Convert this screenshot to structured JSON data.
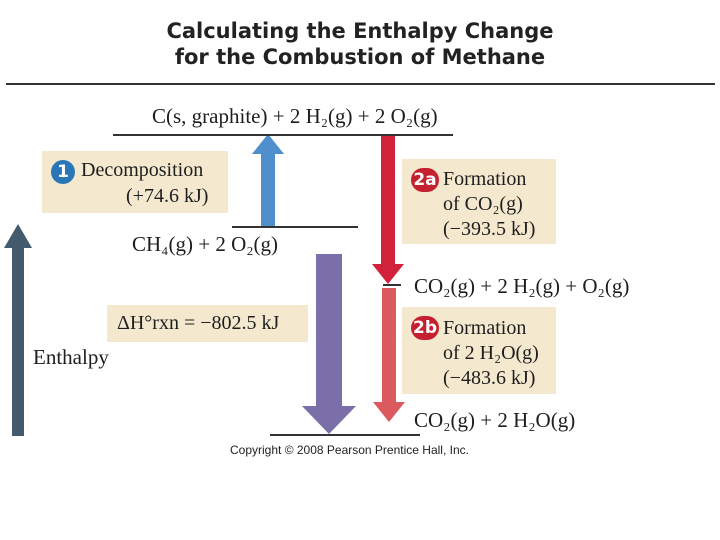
{
  "title_line1": "Calculating the Enthalpy Change",
  "title_line2": "for the Combustion of Methane",
  "levels": {
    "top": "C(s, graphite) + 2 H₂(g) + 2 O₂(g)",
    "methane": "CH₄(g) + 2 O₂(g)",
    "intermediate": "CO₂(g) + 2 H₂(g) + O₂(g)",
    "bottom": "CO₂(g) + 2 H₂O(g)"
  },
  "steps": {
    "step1": {
      "badge": "1",
      "name": "Decomposition",
      "value": "(+74.6 kJ)",
      "direction": "up"
    },
    "step2a": {
      "badge": "2a",
      "name": "Formation",
      "species": "of CO₂(g)",
      "value": "(−393.5 kJ)",
      "direction": "down"
    },
    "step2b": {
      "badge": "2b",
      "name": "Formation",
      "species": "of 2 H₂O(g)",
      "value": "(−483.6 kJ)",
      "direction": "down"
    }
  },
  "overall": {
    "label": "ΔH°rxn = −802.5 kJ",
    "direction": "down"
  },
  "axis_label": "Enthalpy",
  "copyright": "Copyright © 2008 Pearson Prentice Hall, Inc.",
  "colors": {
    "enthalpy_axis": "#445b6e",
    "step1_arrow": "#4e8fcc",
    "step2a_arrow": "#d2213b",
    "step2b_arrow": "#db5a5e",
    "overall_arrow": "#7b6faa",
    "box_fill": "#f4e9cf",
    "badge_blue": "#2a77b8",
    "badge_red": "#c52030"
  }
}
